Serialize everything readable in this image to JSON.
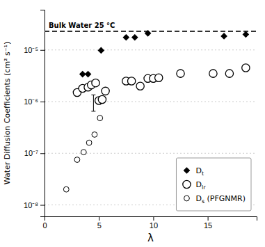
{
  "chart_data": {
    "type": "scatter",
    "xlabel": "λ",
    "ylabel": "Water Diffusion Coefficients (cm² s⁻¹)",
    "log": "y",
    "grid": "y",
    "legend": "lower right",
    "xlim": [
      0,
      19.5
    ],
    "ylim": [
      6e-09,
      6e-05
    ],
    "xticks": [
      0,
      5,
      10,
      15
    ],
    "yticks": [
      {
        "value": 1e-08,
        "label": "10⁻⁸"
      },
      {
        "value": 1e-07,
        "label": "10⁻⁷"
      },
      {
        "value": 1e-06,
        "label": "10⁻⁶"
      },
      {
        "value": 1e-05,
        "label": "10⁻⁵"
      }
    ],
    "series": [
      {
        "name": "Dt",
        "color": "black",
        "marker": "diamond",
        "x": [
          3.5,
          4.0,
          5.2,
          7.5,
          8.3,
          9.5,
          16.5,
          18.5
        ],
        "values": [
          3.4e-06,
          3.4e-06,
          9.8e-06,
          1.75e-05,
          1.75e-05,
          2.1e-05,
          1.85e-05,
          2e-05
        ]
      },
      {
        "name": "Dlr",
        "color": "black",
        "marker": "open-circle",
        "x": [
          3.0,
          3.5,
          4.0,
          4.3,
          4.7,
          5.0,
          5.3,
          5.6,
          7.5,
          8.0,
          8.8,
          9.5,
          10.0,
          10.5,
          12.5,
          15.5,
          17.0,
          18.5
        ],
        "values": [
          1.5e-06,
          1.8e-06,
          1.9e-06,
          2.1e-06,
          2.3e-06,
          1.05e-06,
          1.1e-06,
          1.6e-06,
          2.5e-06,
          2.5e-06,
          2e-06,
          2.8e-06,
          2.8e-06,
          2.9e-06,
          3.5e-06,
          3.5e-06,
          3.5e-06,
          4.5e-06
        ]
      },
      {
        "name": "Ds (PFGNMR)",
        "color": "black",
        "marker": "small-open-circle",
        "x": [
          2.0,
          3.0,
          3.6,
          4.1,
          4.6,
          5.1
        ],
        "values": [
          2e-08,
          7.5e-08,
          1.05e-07,
          1.6e-07,
          2.3e-07,
          4.8e-07
        ]
      }
    ],
    "reference_lines": [
      {
        "y": 2.3e-05,
        "label": "Bulk Water 25 °C",
        "line_style": "dashed",
        "color": "#333333"
      }
    ],
    "error_bars": [
      {
        "x": 4.5,
        "y": 1e-06,
        "yerr_lo": 3.5e-07,
        "yerr_hi": 3.5e-07
      }
    ]
  }
}
